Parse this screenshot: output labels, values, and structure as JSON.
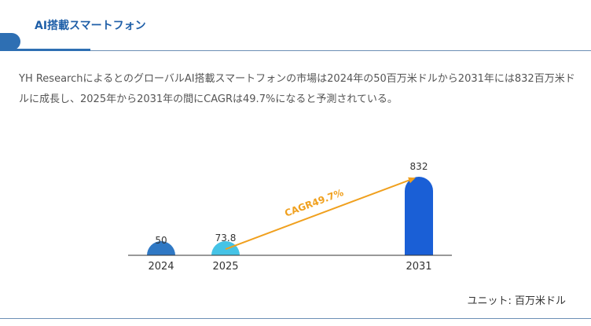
{
  "header": {
    "title": "AI搭載スマートフォン"
  },
  "description": "YH ResearchによるとのグローバルAI搭載スマートフォンの市場は2024年の50百万米ドルから2031年には832百万米ドルに成長し、2025年から2031年の間にCAGRは49.7%になると予測されている。",
  "chart_data": {
    "type": "bar",
    "categories": [
      "2024",
      "2025",
      "2031"
    ],
    "values": [
      50,
      73.8,
      832
    ],
    "value_labels": [
      "50",
      "73.8",
      "832"
    ],
    "colors": [
      "#2f78c4",
      "#45c3e6",
      "#1a5fd6"
    ],
    "annotation": {
      "text": "CAGR49.7%",
      "from": "2025",
      "to": "2031",
      "color": "#f0a01e"
    },
    "ylim": [
      0,
      832
    ],
    "grid": false
  },
  "unit_label": "ユニット: 百万米ドル"
}
